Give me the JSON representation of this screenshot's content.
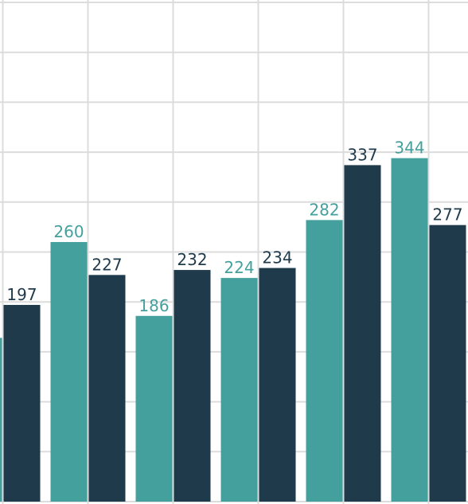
{
  "chart_data": {
    "type": "bar",
    "categories": [
      null,
      null,
      null,
      null,
      null,
      null
    ],
    "series": [
      {
        "color": "#44a09c",
        "values": [
          164,
          260,
          186,
          224,
          282,
          344
        ]
      },
      {
        "color": "#1e3a4b",
        "values": [
          197,
          227,
          232,
          234,
          337,
          277
        ]
      }
    ],
    "ylim": [
      0,
      500
    ],
    "yticks": [
      0,
      50,
      100,
      150,
      200,
      250,
      300,
      350,
      400,
      450,
      500
    ],
    "grid": true
  }
}
